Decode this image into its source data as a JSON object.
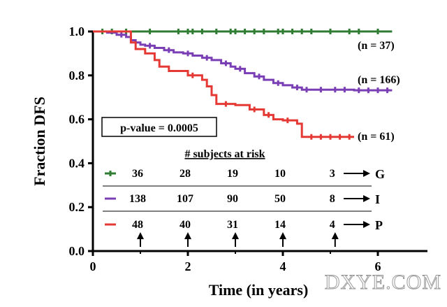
{
  "chart_data": {
    "type": "line",
    "xlabel": "Time (in years)",
    "ylabel": "Fraction DFS",
    "xlim": [
      0,
      6.5
    ],
    "ylim": [
      0,
      1.0
    ],
    "x_ticks": [
      "0",
      "2",
      "4",
      "6"
    ],
    "y_ticks": [
      "0.0",
      "0.2",
      "0.4",
      "0.6",
      "0.8",
      "1.0"
    ],
    "pvalue_label": "p-value = 0.0005",
    "risk_table_title": "# subjects at risk",
    "risk_times": [
      1,
      2,
      3,
      4,
      5.1
    ],
    "series": [
      {
        "name": "G",
        "n_label": "(n = 37)",
        "color": "#2e7d32",
        "points": [
          [
            0,
            1.0
          ],
          [
            6.3,
            1.0
          ]
        ],
        "censor_x": [
          0.2,
          0.4,
          0.7,
          1.2,
          1.8,
          2.0,
          2.1,
          2.3,
          2.6,
          2.9,
          3.0,
          3.2,
          3.4,
          3.6,
          3.9,
          4.0,
          4.2,
          4.4,
          4.6,
          5.0,
          5.4,
          5.6,
          6.0
        ],
        "risk": [
          36,
          28,
          19,
          10,
          3
        ]
      },
      {
        "name": "I",
        "n_label": "(n = 166)",
        "color": "#7b3fb5",
        "points": [
          [
            0,
            1.0
          ],
          [
            0.3,
            0.995
          ],
          [
            0.5,
            0.985
          ],
          [
            0.7,
            0.975
          ],
          [
            0.8,
            0.96
          ],
          [
            0.9,
            0.95
          ],
          [
            1.0,
            0.94
          ],
          [
            1.1,
            0.935
          ],
          [
            1.3,
            0.925
          ],
          [
            1.5,
            0.915
          ],
          [
            1.7,
            0.905
          ],
          [
            1.9,
            0.9
          ],
          [
            2.1,
            0.89
          ],
          [
            2.3,
            0.88
          ],
          [
            2.5,
            0.87
          ],
          [
            2.7,
            0.855
          ],
          [
            2.9,
            0.84
          ],
          [
            3.0,
            0.83
          ],
          [
            3.2,
            0.81
          ],
          [
            3.4,
            0.795
          ],
          [
            3.6,
            0.78
          ],
          [
            3.8,
            0.765
          ],
          [
            4.0,
            0.755
          ],
          [
            4.2,
            0.745
          ],
          [
            4.4,
            0.735
          ],
          [
            4.6,
            0.735
          ],
          [
            5.0,
            0.735
          ],
          [
            5.5,
            0.732
          ],
          [
            6.3,
            0.732
          ]
        ],
        "censor_x": [
          0.6,
          1.2,
          1.6,
          2.0,
          2.4,
          2.8,
          3.1,
          3.5,
          3.9,
          4.3,
          4.5,
          4.8,
          5.1,
          5.3,
          5.6,
          5.8,
          6.0,
          6.2
        ],
        "risk": [
          138,
          107,
          90,
          50,
          8
        ]
      },
      {
        "name": "P",
        "n_label": "(n = 61)",
        "color": "#e53935",
        "points": [
          [
            0,
            1.0
          ],
          [
            0.7,
            1.0
          ],
          [
            0.8,
            0.95
          ],
          [
            0.9,
            0.92
          ],
          [
            1.1,
            0.9
          ],
          [
            1.3,
            0.87
          ],
          [
            1.4,
            0.84
          ],
          [
            1.6,
            0.82
          ],
          [
            2.0,
            0.8
          ],
          [
            2.3,
            0.78
          ],
          [
            2.4,
            0.75
          ],
          [
            2.5,
            0.71
          ],
          [
            2.6,
            0.67
          ],
          [
            3.0,
            0.665
          ],
          [
            3.3,
            0.645
          ],
          [
            3.6,
            0.62
          ],
          [
            3.8,
            0.6
          ],
          [
            4.0,
            0.595
          ],
          [
            4.3,
            0.58
          ],
          [
            4.4,
            0.52
          ],
          [
            5.0,
            0.52
          ],
          [
            5.5,
            0.52
          ]
        ],
        "censor_x": [
          2.1,
          2.8,
          3.4,
          3.7,
          4.1,
          4.6,
          4.8,
          5.0,
          5.2,
          5.4
        ],
        "risk": [
          48,
          40,
          31,
          14,
          4
        ]
      }
    ]
  },
  "watermark": "DXYE.COM"
}
